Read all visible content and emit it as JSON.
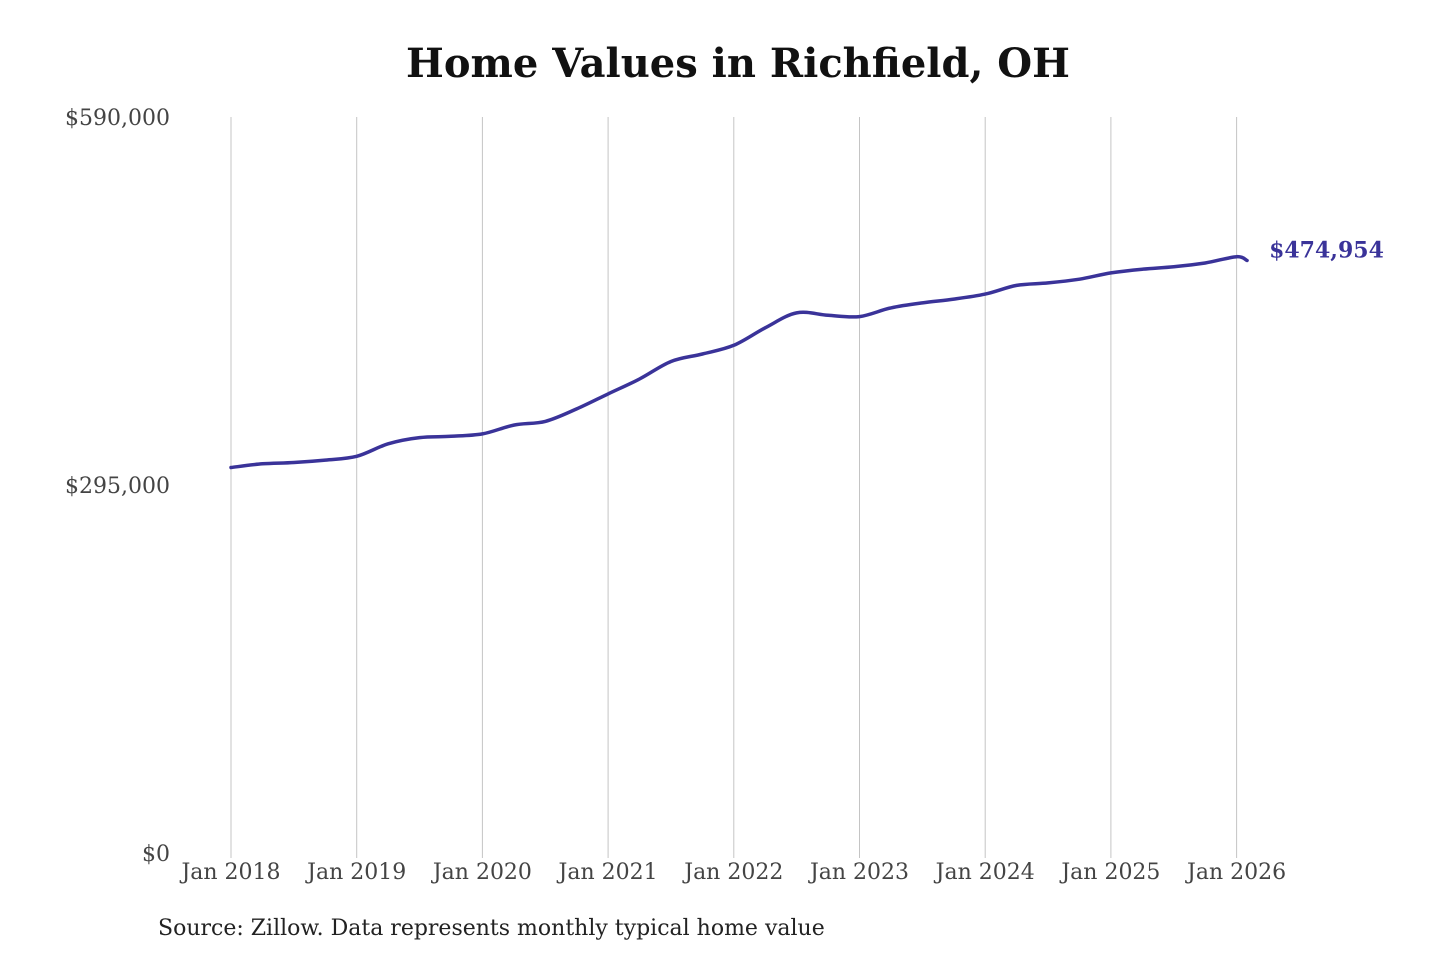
{
  "chart_data": {
    "type": "line",
    "title": "Home Values in Richfield, OH",
    "xlabel": "",
    "ylabel": "",
    "ylim": [
      0,
      590000
    ],
    "y_ticks": [
      {
        "value": 0,
        "label": "$0"
      },
      {
        "value": 295000,
        "label": "$295,000"
      },
      {
        "value": 590000,
        "label": "$590,000"
      }
    ],
    "x_ticks": [
      "Jan 2018",
      "Jan 2019",
      "Jan 2020",
      "Jan 2021",
      "Jan 2022",
      "Jan 2023",
      "Jan 2024",
      "Jan 2025",
      "Jan 2026"
    ],
    "grid": {
      "vertical": true,
      "horizontal": false
    },
    "series": [
      {
        "color": "#3a3399",
        "x": [
          "2018-01",
          "2018-04",
          "2018-07",
          "2018-10",
          "2019-01",
          "2019-04",
          "2019-07",
          "2019-10",
          "2020-01",
          "2020-04",
          "2020-07",
          "2020-10",
          "2021-01",
          "2021-04",
          "2021-07",
          "2021-10",
          "2022-01",
          "2022-04",
          "2022-07",
          "2022-10",
          "2023-01",
          "2023-04",
          "2023-07",
          "2023-10",
          "2024-01",
          "2024-04",
          "2024-07",
          "2024-10",
          "2025-01",
          "2025-04",
          "2025-07",
          "2025-10",
          "2026-01",
          "2026-02"
        ],
        "values": [
          309000,
          312000,
          313000,
          315000,
          318000,
          328000,
          333000,
          334000,
          336000,
          343000,
          346000,
          356000,
          368000,
          380000,
          394000,
          400000,
          407000,
          421000,
          433000,
          431000,
          430000,
          437000,
          441000,
          444000,
          448000,
          455000,
          457000,
          460000,
          465000,
          468000,
          470000,
          473000,
          478000,
          474954
        ]
      }
    ],
    "end_label": "$474,954",
    "source": "Source: Zillow. Data represents monthly typical home value"
  }
}
